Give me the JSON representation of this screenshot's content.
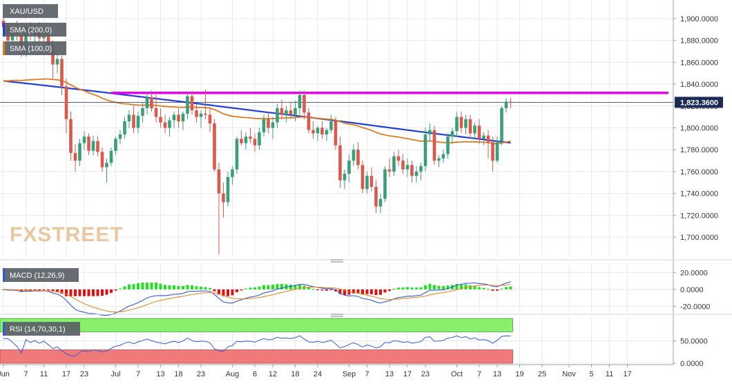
{
  "chart_data": {
    "type": "candlestick",
    "symbol": "XAU/USD",
    "colors": {
      "up": "#3a9e78",
      "down": "#d9594c",
      "sma200": "#1f3fd6",
      "sma100": "#e07a1f",
      "resistance": "#f000f0",
      "price_line": "#1a2b55",
      "macd_line": "#3358d6",
      "macd_signal": "#e08a2a",
      "hist_pos": "#22e022",
      "hist_neg": "#e01010",
      "rsi_line": "#3358d6",
      "rsi_over": "#88f06a",
      "rsi_under": "#f07a7a"
    },
    "main": {
      "ylim": [
        1683,
        1917
      ],
      "yticks": [
        1700,
        1720,
        1740,
        1760,
        1780,
        1800,
        1820,
        1840,
        1860,
        1880,
        1900
      ],
      "ytick_labels": [
        "1,700.0000",
        "1,720.0000",
        "1,740.0000",
        "1,760.0000",
        "1,780.0000",
        "1,800.0000",
        "1,820.0000",
        "1,840.0000",
        "1,860.0000",
        "1,880.0000",
        "1,900.0000"
      ],
      "last_price": 1823.36,
      "last_price_label": "1,823.3600",
      "resistance_level": 1832,
      "legend": [
        {
          "label": "XAU/USD",
          "color_key": "price"
        },
        {
          "label": "SMA (200,0)",
          "color_key": "sma200"
        },
        {
          "label": "SMA (100,0)",
          "color_key": "sma100"
        }
      ],
      "watermark": "FXSTREET",
      "candles": [
        [
          1898,
          1904,
          1885,
          1892
        ],
        [
          1892,
          1896,
          1876,
          1880
        ],
        [
          1880,
          1895,
          1875,
          1890
        ],
        [
          1890,
          1898,
          1880,
          1885
        ],
        [
          1885,
          1890,
          1865,
          1870
        ],
        [
          1870,
          1895,
          1865,
          1892
        ],
        [
          1892,
          1897,
          1880,
          1885
        ],
        [
          1885,
          1895,
          1878,
          1890
        ],
        [
          1890,
          1897,
          1878,
          1882
        ],
        [
          1882,
          1893,
          1875,
          1888
        ],
        [
          1888,
          1890,
          1870,
          1876
        ],
        [
          1876,
          1880,
          1845,
          1858
        ],
        [
          1858,
          1868,
          1850,
          1863
        ],
        [
          1863,
          1866,
          1830,
          1838
        ],
        [
          1838,
          1845,
          1795,
          1808
        ],
        [
          1808,
          1815,
          1770,
          1777
        ],
        [
          1777,
          1785,
          1760,
          1770
        ],
        [
          1770,
          1790,
          1765,
          1786
        ],
        [
          1786,
          1797,
          1780,
          1792
        ],
        [
          1792,
          1795,
          1775,
          1779
        ],
        [
          1779,
          1793,
          1775,
          1788
        ],
        [
          1788,
          1792,
          1774,
          1778
        ],
        [
          1778,
          1782,
          1760,
          1764
        ],
        [
          1764,
          1772,
          1750,
          1768
        ],
        [
          1768,
          1782,
          1765,
          1779
        ],
        [
          1779,
          1792,
          1775,
          1790
        ],
        [
          1790,
          1798,
          1785,
          1794
        ],
        [
          1794,
          1810,
          1790,
          1806
        ],
        [
          1806,
          1816,
          1800,
          1812
        ],
        [
          1812,
          1820,
          1795,
          1800
        ],
        [
          1800,
          1815,
          1795,
          1811
        ],
        [
          1811,
          1823,
          1805,
          1818
        ],
        [
          1818,
          1832,
          1812,
          1828
        ],
        [
          1828,
          1834,
          1815,
          1818
        ],
        [
          1818,
          1830,
          1805,
          1810
        ],
        [
          1810,
          1818,
          1800,
          1805
        ],
        [
          1805,
          1812,
          1795,
          1800
        ],
        [
          1800,
          1810,
          1792,
          1807
        ],
        [
          1807,
          1815,
          1800,
          1812
        ],
        [
          1812,
          1818,
          1800,
          1806
        ],
        [
          1806,
          1815,
          1798,
          1813
        ],
        [
          1813,
          1832,
          1808,
          1829
        ],
        [
          1829,
          1834,
          1812,
          1816
        ],
        [
          1816,
          1822,
          1805,
          1810
        ],
        [
          1810,
          1816,
          1800,
          1813
        ],
        [
          1813,
          1835,
          1808,
          1812
        ],
        [
          1812,
          1818,
          1796,
          1804
        ],
        [
          1804,
          1808,
          1760,
          1762
        ],
        [
          1762,
          1768,
          1684,
          1740
        ],
        [
          1740,
          1750,
          1718,
          1732
        ],
        [
          1732,
          1760,
          1728,
          1755
        ],
        [
          1755,
          1765,
          1748,
          1762
        ],
        [
          1762,
          1792,
          1758,
          1790
        ],
        [
          1790,
          1798,
          1784,
          1786
        ],
        [
          1786,
          1796,
          1780,
          1792
        ],
        [
          1792,
          1800,
          1786,
          1790
        ],
        [
          1790,
          1795,
          1778,
          1784
        ],
        [
          1784,
          1800,
          1780,
          1796
        ],
        [
          1796,
          1812,
          1792,
          1808
        ],
        [
          1808,
          1815,
          1795,
          1800
        ],
        [
          1800,
          1810,
          1790,
          1805
        ],
        [
          1805,
          1822,
          1800,
          1818
        ],
        [
          1818,
          1826,
          1808,
          1812
        ],
        [
          1812,
          1820,
          1805,
          1816
        ],
        [
          1816,
          1824,
          1808,
          1812
        ],
        [
          1812,
          1825,
          1806,
          1818
        ],
        [
          1818,
          1834,
          1812,
          1830
        ],
        [
          1830,
          1834,
          1808,
          1814
        ],
        [
          1814,
          1818,
          1795,
          1798
        ],
        [
          1798,
          1806,
          1790,
          1795
        ],
        [
          1795,
          1802,
          1788,
          1800
        ],
        [
          1800,
          1806,
          1790,
          1794
        ],
        [
          1794,
          1800,
          1788,
          1798
        ],
        [
          1798,
          1812,
          1795,
          1806
        ],
        [
          1806,
          1810,
          1780,
          1784
        ],
        [
          1784,
          1792,
          1745,
          1752
        ],
        [
          1752,
          1762,
          1744,
          1758
        ],
        [
          1758,
          1775,
          1750,
          1770
        ],
        [
          1770,
          1785,
          1765,
          1780
        ],
        [
          1780,
          1787,
          1762,
          1766
        ],
        [
          1766,
          1770,
          1740,
          1744
        ],
        [
          1744,
          1760,
          1740,
          1756
        ],
        [
          1756,
          1764,
          1742,
          1746
        ],
        [
          1746,
          1752,
          1722,
          1728
        ],
        [
          1728,
          1740,
          1722,
          1735
        ],
        [
          1735,
          1765,
          1732,
          1762
        ],
        [
          1762,
          1772,
          1755,
          1760
        ],
        [
          1760,
          1778,
          1756,
          1774
        ],
        [
          1774,
          1780,
          1765,
          1770
        ],
        [
          1770,
          1776,
          1758,
          1762
        ],
        [
          1762,
          1772,
          1755,
          1766
        ],
        [
          1766,
          1770,
          1750,
          1756
        ],
        [
          1756,
          1765,
          1750,
          1760
        ],
        [
          1760,
          1768,
          1752,
          1765
        ],
        [
          1765,
          1800,
          1760,
          1794
        ],
        [
          1794,
          1804,
          1788,
          1798
        ],
        [
          1798,
          1802,
          1766,
          1770
        ],
        [
          1770,
          1775,
          1764,
          1772
        ],
        [
          1772,
          1780,
          1768,
          1776
        ],
        [
          1776,
          1795,
          1772,
          1792
        ],
        [
          1792,
          1800,
          1785,
          1797
        ],
        [
          1797,
          1814,
          1792,
          1810
        ],
        [
          1810,
          1815,
          1795,
          1800
        ],
        [
          1800,
          1812,
          1794,
          1808
        ],
        [
          1808,
          1812,
          1790,
          1795
        ],
        [
          1795,
          1805,
          1790,
          1802
        ],
        [
          1802,
          1808,
          1785,
          1790
        ],
        [
          1790,
          1796,
          1784,
          1793
        ],
        [
          1793,
          1798,
          1772,
          1787
        ],
        [
          1787,
          1792,
          1760,
          1770
        ],
        [
          1770,
          1792,
          1768,
          1788
        ],
        [
          1788,
          1820,
          1784,
          1818
        ],
        [
          1818,
          1827,
          1814,
          1824
        ],
        [
          1824,
          1828,
          1818,
          1823
        ]
      ]
    },
    "x_axis": {
      "ticks": [
        {
          "label": "Jun",
          "i": 0
        },
        {
          "label": "7",
          "i": 5
        },
        {
          "label": "11",
          "i": 9
        },
        {
          "label": "17",
          "i": 14
        },
        {
          "label": "23",
          "i": 18
        },
        {
          "label": "Jul",
          "i": 25
        },
        {
          "label": "7",
          "i": 30
        },
        {
          "label": "13",
          "i": 35
        },
        {
          "label": "18",
          "i": 39
        },
        {
          "label": "23",
          "i": 44
        },
        {
          "label": "Aug",
          "i": 51
        },
        {
          "label": "6",
          "i": 56
        },
        {
          "label": "12",
          "i": 60
        },
        {
          "label": "18",
          "i": 65
        },
        {
          "label": "24",
          "i": 70
        },
        {
          "label": "Sep",
          "i": 77
        },
        {
          "label": "7",
          "i": 81
        },
        {
          "label": "13",
          "i": 86
        },
        {
          "label": "17",
          "i": 90
        },
        {
          "label": "23",
          "i": 94
        },
        {
          "label": "Oct",
          "i": 101
        },
        {
          "label": "7",
          "i": 106
        },
        {
          "label": "13",
          "i": 110
        },
        {
          "label": "19",
          "i": 115
        },
        {
          "label": "25",
          "i": 120
        },
        {
          "label": "Nov",
          "i": 126
        },
        {
          "label": "5",
          "i": 131
        },
        {
          "label": "11",
          "i": 135
        },
        {
          "label": "17",
          "i": 139
        }
      ]
    },
    "macd": {
      "label": "MACD (12,26,9)",
      "ylim": [
        -27,
        30
      ],
      "yticks": [
        -20,
        0,
        20
      ],
      "ytick_labels": [
        "-20.0000",
        "0.0000",
        "20.0000"
      ]
    },
    "rsi": {
      "label": "RSI (14,70,30,1)",
      "ylim": [
        -3,
        103
      ],
      "overbought": 70,
      "oversold": 30,
      "yticks": [
        0,
        50
      ],
      "ytick_labels": [
        "0.0000",
        "50.0000"
      ]
    }
  }
}
